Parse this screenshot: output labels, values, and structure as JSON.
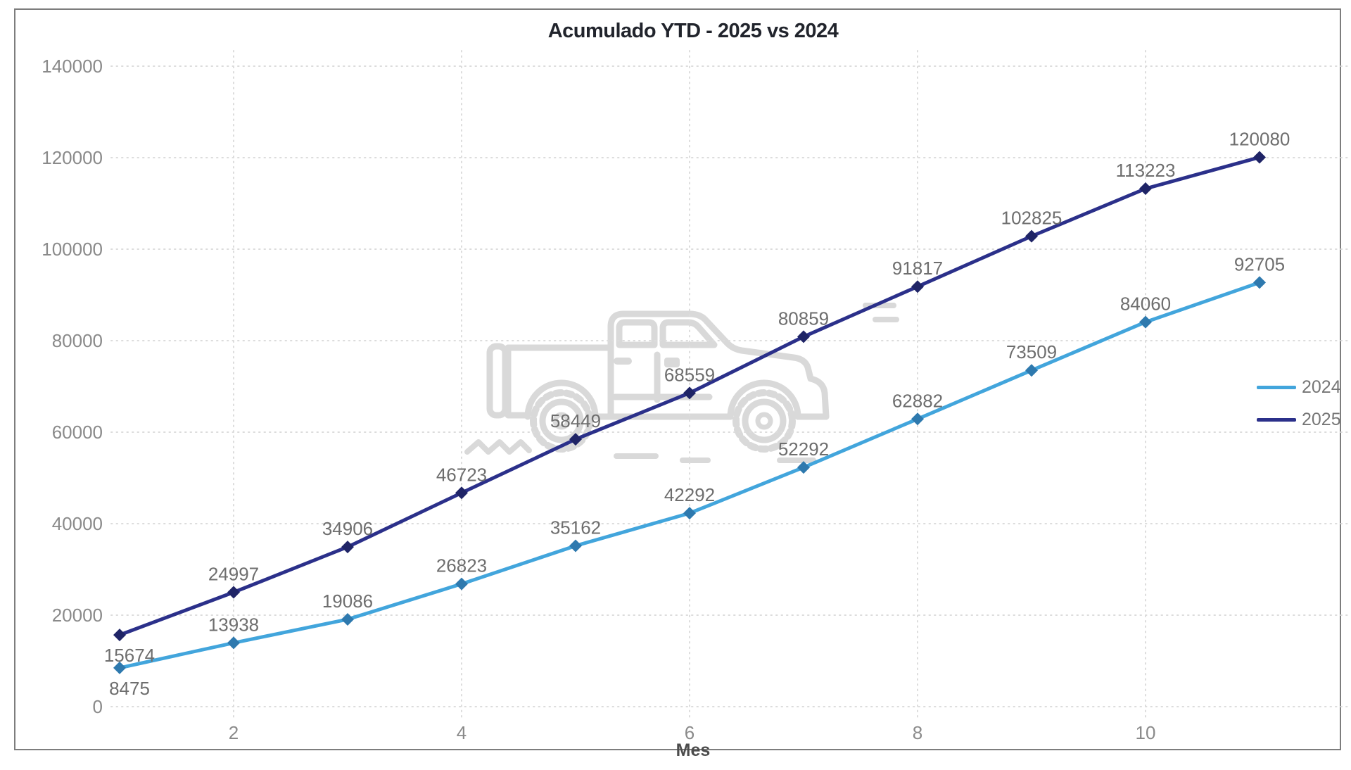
{
  "title": "Acumulado YTD - 2025 vs 2024",
  "chart_data": {
    "type": "line",
    "x": [
      1,
      2,
      3,
      4,
      5,
      6,
      7,
      8,
      9,
      10,
      11
    ],
    "xlabel": "Mes",
    "ylim": [
      0,
      140000
    ],
    "yticks": [
      0,
      20000,
      40000,
      60000,
      80000,
      100000,
      120000,
      140000
    ],
    "xticks": [
      2,
      4,
      6,
      8,
      10
    ],
    "grid": "dotted",
    "legend_position": "right",
    "marker": "diamond",
    "data_labels_visible": true,
    "series": [
      {
        "name": "2024",
        "color": "#42A5DC",
        "marker_color": "#2E79AE",
        "values": [
          8475,
          13938,
          19086,
          26823,
          35162,
          42292,
          52292,
          62882,
          73509,
          84060,
          92705
        ]
      },
      {
        "name": "2025",
        "color": "#2B308A",
        "marker_color": "#1F2466",
        "values": [
          15674,
          24997,
          34906,
          46723,
          58449,
          68559,
          80859,
          91817,
          102825,
          113223,
          120080
        ]
      }
    ]
  },
  "legend": {
    "items": [
      {
        "label": "2024"
      },
      {
        "label": "2025"
      }
    ]
  },
  "watermark_icon": "pickup-truck",
  "colors": {
    "background": "#ffffff",
    "frame_border": "#7d7d7d",
    "gridline": "#dcdcdc",
    "tick_label": "#8a8a8a",
    "data_label": "#6e6e6e",
    "title_text": "#21242c",
    "axis_title_text": "#4c4c4c",
    "legend_text": "#767676",
    "watermark": "#d9d9d9"
  }
}
